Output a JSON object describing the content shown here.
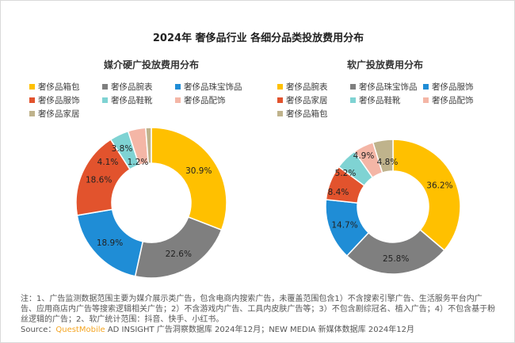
{
  "title": "2024年 奢侈品行业 各细分品类投放费用分布",
  "chart_data": [
    {
      "type": "pie",
      "donut": true,
      "title": "媒介硬广投放费用分布",
      "legend_position": "top",
      "categories": [
        "奢侈品箱包",
        "奢侈品腕表",
        "奢侈品珠宝饰品",
        "奢侈品服饰",
        "奢侈品鞋靴",
        "奢侈品配饰",
        "奢侈品家居"
      ],
      "values": [
        30.9,
        22.6,
        18.9,
        18.6,
        4.1,
        3.8,
        1.2
      ],
      "labels": [
        "30.9%",
        "22.6%",
        "18.9%",
        "18.6%",
        "4.1%",
        "3.8%",
        "1.2%"
      ],
      "colors": [
        "#FFC000",
        "#7F7F7F",
        "#1F8DD6",
        "#E2532D",
        "#7FD3D3",
        "#F4B6A6",
        "#BFB38C"
      ]
    },
    {
      "type": "pie",
      "donut": true,
      "title": "软广投放费用分布",
      "legend_position": "top",
      "categories": [
        "奢侈品腕表",
        "奢侈品珠宝饰品",
        "奢侈品服饰",
        "奢侈品家居",
        "奢侈品鞋靴",
        "奢侈品配饰",
        "奢侈品箱包"
      ],
      "values": [
        36.2,
        25.8,
        14.7,
        8.4,
        5.2,
        4.9,
        4.8
      ],
      "labels": [
        "36.2%",
        "25.8%",
        "14.7%",
        "8.4%",
        "5.2%",
        "4.9%",
        "4.8%"
      ],
      "colors": [
        "#FFC000",
        "#7F7F7F",
        "#1F8DD6",
        "#E2532D",
        "#7FD3D3",
        "#F4B6A6",
        "#BFB38C"
      ]
    }
  ],
  "note": "注：1、广告监测数据范围主要为媒介展示类广告，包含电商内搜索广告，未覆盖范围包含1）不含搜索引擎广告、生活服务平台内广告、应用商店内广告等搜索逻辑相关广告；2）不含游戏内广告、工具内皮肤广告等；3）不包含剧综冠名、植入广告；4）不包含基于粉丝逻辑的广告；2、软广统计范围：抖音、快手、小红书。",
  "source": {
    "prefix": "Source：",
    "brand": "QuestMobile",
    "rest": " AD INSIGHT 广告洞察数据库 2024年12月；NEW MEDIA 新媒体数据库 2024年12月"
  }
}
